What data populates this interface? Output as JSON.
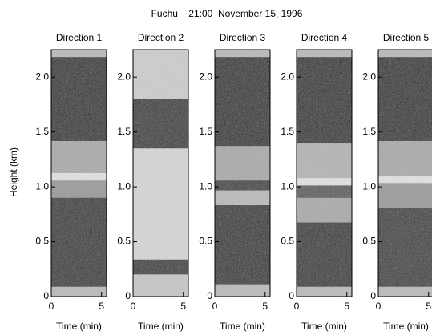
{
  "title": "Fuchu    21:00  November 15, 1996",
  "ylabel": "Height (km)",
  "chart_data": [
    {
      "type": "image",
      "title": "Direction 1",
      "xlabel": "Time (min)",
      "xlim": [
        0,
        5.5
      ],
      "xticks": [
        0,
        5
      ],
      "ylim": [
        0,
        2.25
      ],
      "yticks": [
        0,
        0.5,
        {
          "value": 1,
          "label": "1.0"
        },
        1.5,
        {
          "value": 2,
          "label": "2.0"
        }
      ]
    },
    {
      "type": "image",
      "title": "Direction 2",
      "xlabel": "Time (min)",
      "xlim": [
        0,
        5.5
      ],
      "xticks": [
        0,
        5
      ],
      "ylim": [
        0,
        2.25
      ],
      "yticks": [
        0,
        0.5,
        {
          "value": 1,
          "label": "1.0"
        },
        1.5,
        {
          "value": 2,
          "label": "2.0"
        }
      ]
    },
    {
      "type": "image",
      "title": "Direction 3",
      "xlabel": "Time (min)",
      "xlim": [
        0,
        5.5
      ],
      "xticks": [
        0,
        5
      ],
      "ylim": [
        0,
        2.25
      ],
      "yticks": [
        0,
        0.5,
        {
          "value": 1,
          "label": "1.0"
        },
        1.5,
        {
          "value": 2,
          "label": "2.0"
        }
      ]
    },
    {
      "type": "image",
      "title": "Direction 4",
      "xlabel": "Time (min)",
      "xlim": [
        0,
        5.5
      ],
      "xticks": [
        0,
        5
      ],
      "ylim": [
        0,
        2.25
      ],
      "yticks": [
        0,
        0.5,
        {
          "value": 1,
          "label": "1.0"
        },
        1.5,
        {
          "value": 2,
          "label": "2.0"
        }
      ]
    },
    {
      "type": "image",
      "title": "Direction 5",
      "xlabel": "Time (min)",
      "xlim": [
        0,
        5.5
      ],
      "xticks": [
        0,
        5
      ],
      "ylim": [
        0,
        2.25
      ],
      "yticks": [
        0,
        0.5,
        {
          "value": 1,
          "label": "1.0"
        },
        1.5,
        {
          "value": 2,
          "label": "2.0"
        }
      ]
    }
  ]
}
